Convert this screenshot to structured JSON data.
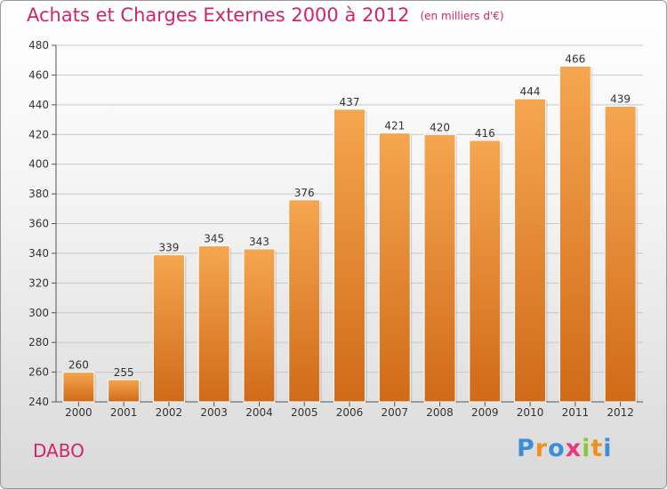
{
  "chart_data": {
    "type": "bar",
    "title": "Achats et Charges Externes 2000 à 2012",
    "subtitle": "(en milliers d'€)",
    "categories": [
      "2000",
      "2001",
      "2002",
      "2003",
      "2004",
      "2005",
      "2006",
      "2007",
      "2008",
      "2009",
      "2010",
      "2011",
      "2012"
    ],
    "values": [
      260,
      255,
      339,
      345,
      343,
      376,
      437,
      421,
      420,
      416,
      444,
      466,
      439
    ],
    "ylim": [
      240,
      480
    ],
    "yticks": [
      240,
      260,
      280,
      300,
      320,
      340,
      360,
      380,
      400,
      420,
      440,
      460,
      480
    ],
    "grid": true,
    "bar_color_top": "#f6a650",
    "bar_color_bottom": "#d06a18"
  },
  "place": "DABO",
  "logo": {
    "letters": [
      "P",
      "r",
      "o",
      "x",
      "i",
      "t",
      "i"
    ],
    "colors": [
      "#3a8fd6",
      "#f09020",
      "#3a8fd6",
      "#e63a80",
      "#8cc63e",
      "#f09020",
      "#3a8fd6"
    ]
  }
}
